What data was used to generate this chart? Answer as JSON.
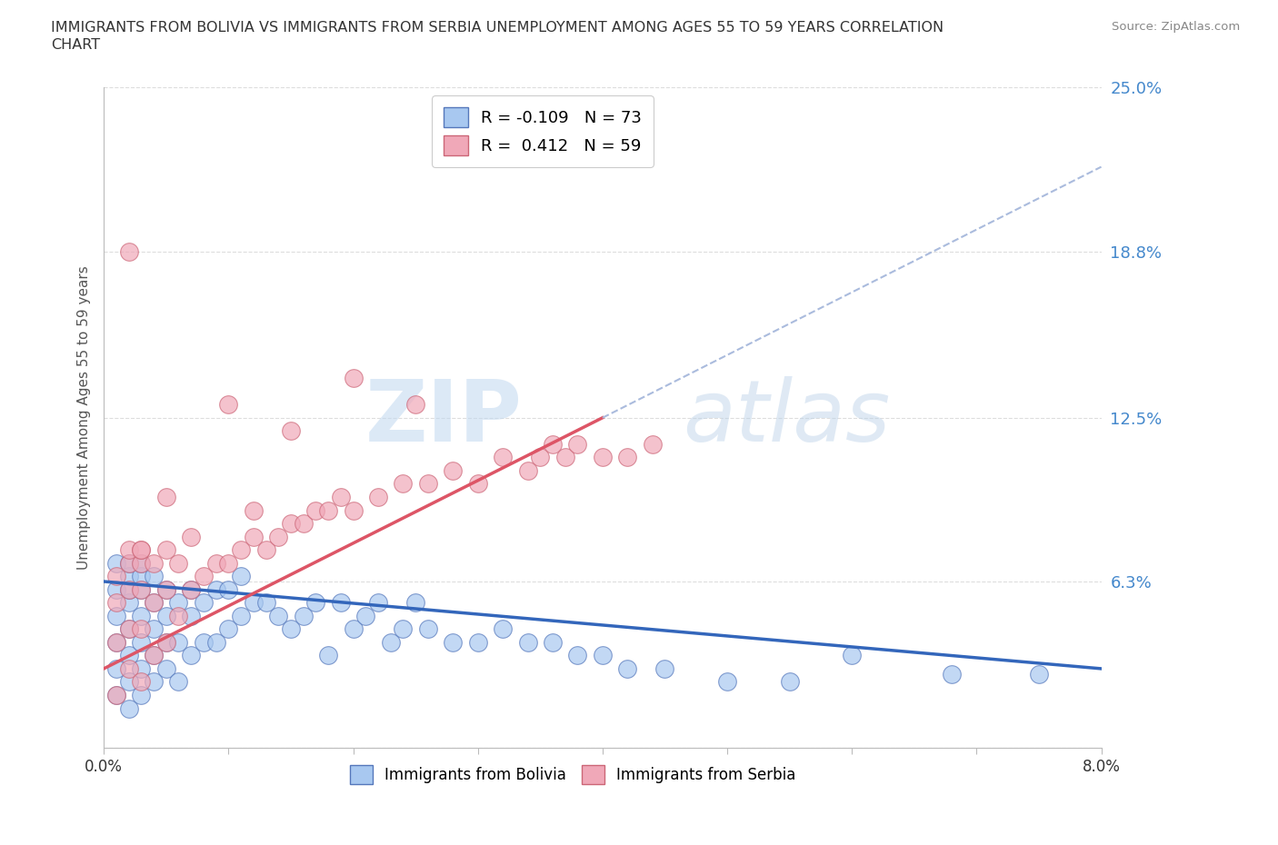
{
  "title_line1": "IMMIGRANTS FROM BOLIVIA VS IMMIGRANTS FROM SERBIA UNEMPLOYMENT AMONG AGES 55 TO 59 YEARS CORRELATION",
  "title_line2": "CHART",
  "source": "Source: ZipAtlas.com",
  "ylabel": "Unemployment Among Ages 55 to 59 years",
  "xlim": [
    0.0,
    0.08
  ],
  "ylim": [
    0.0,
    0.25
  ],
  "xticks": [
    0.0,
    0.01,
    0.02,
    0.03,
    0.04,
    0.05,
    0.06,
    0.07,
    0.08
  ],
  "xticklabels": [
    "0.0%",
    "",
    "",
    "",
    "",
    "",
    "",
    "",
    "8.0%"
  ],
  "ytick_positions": [
    0.0,
    0.063,
    0.125,
    0.188,
    0.25
  ],
  "ytick_labels": [
    "",
    "6.3%",
    "12.5%",
    "18.8%",
    "25.0%"
  ],
  "bolivia_color": "#a8c8f0",
  "serbia_color": "#f0a8b8",
  "bolivia_edge": "#5577bb",
  "serbia_edge": "#cc6677",
  "bolivia_trend_color": "#3366bb",
  "serbia_trend_color": "#dd5566",
  "bolivia_trend_dashed_color": "#aabbdd",
  "R_bolivia": -0.109,
  "N_bolivia": 73,
  "R_serbia": 0.412,
  "N_serbia": 59,
  "watermark_zip": "ZIP",
  "watermark_atlas": "atlas",
  "grid_color": "#dddddd",
  "bolivia_x": [
    0.001,
    0.001,
    0.001,
    0.001,
    0.001,
    0.001,
    0.002,
    0.002,
    0.002,
    0.002,
    0.002,
    0.002,
    0.002,
    0.002,
    0.003,
    0.003,
    0.003,
    0.003,
    0.003,
    0.003,
    0.003,
    0.004,
    0.004,
    0.004,
    0.004,
    0.004,
    0.005,
    0.005,
    0.005,
    0.005,
    0.006,
    0.006,
    0.006,
    0.007,
    0.007,
    0.007,
    0.008,
    0.008,
    0.009,
    0.009,
    0.01,
    0.01,
    0.011,
    0.011,
    0.012,
    0.013,
    0.014,
    0.015,
    0.016,
    0.017,
    0.018,
    0.019,
    0.02,
    0.021,
    0.022,
    0.023,
    0.024,
    0.025,
    0.026,
    0.028,
    0.03,
    0.032,
    0.034,
    0.036,
    0.038,
    0.04,
    0.042,
    0.045,
    0.05,
    0.055,
    0.06,
    0.068,
    0.075
  ],
  "bolivia_y": [
    0.02,
    0.03,
    0.04,
    0.05,
    0.06,
    0.07,
    0.015,
    0.025,
    0.035,
    0.045,
    0.055,
    0.06,
    0.065,
    0.07,
    0.02,
    0.03,
    0.04,
    0.05,
    0.06,
    0.065,
    0.07,
    0.025,
    0.035,
    0.045,
    0.055,
    0.065,
    0.03,
    0.04,
    0.05,
    0.06,
    0.025,
    0.04,
    0.055,
    0.035,
    0.05,
    0.06,
    0.04,
    0.055,
    0.04,
    0.06,
    0.045,
    0.06,
    0.05,
    0.065,
    0.055,
    0.055,
    0.05,
    0.045,
    0.05,
    0.055,
    0.035,
    0.055,
    0.045,
    0.05,
    0.055,
    0.04,
    0.045,
    0.055,
    0.045,
    0.04,
    0.04,
    0.045,
    0.04,
    0.04,
    0.035,
    0.035,
    0.03,
    0.03,
    0.025,
    0.025,
    0.035,
    0.028,
    0.028
  ],
  "serbia_x": [
    0.001,
    0.001,
    0.001,
    0.001,
    0.002,
    0.002,
    0.002,
    0.002,
    0.002,
    0.003,
    0.003,
    0.003,
    0.003,
    0.003,
    0.004,
    0.004,
    0.004,
    0.005,
    0.005,
    0.005,
    0.006,
    0.006,
    0.007,
    0.008,
    0.009,
    0.01,
    0.011,
    0.012,
    0.013,
    0.014,
    0.015,
    0.016,
    0.017,
    0.018,
    0.019,
    0.02,
    0.022,
    0.024,
    0.026,
    0.028,
    0.03,
    0.032,
    0.034,
    0.035,
    0.036,
    0.037,
    0.038,
    0.04,
    0.042,
    0.044,
    0.002,
    0.005,
    0.01,
    0.015,
    0.02,
    0.025,
    0.003,
    0.007,
    0.012
  ],
  "serbia_y": [
    0.02,
    0.04,
    0.055,
    0.065,
    0.03,
    0.045,
    0.06,
    0.07,
    0.075,
    0.025,
    0.045,
    0.06,
    0.07,
    0.075,
    0.035,
    0.055,
    0.07,
    0.04,
    0.06,
    0.075,
    0.05,
    0.07,
    0.06,
    0.065,
    0.07,
    0.07,
    0.075,
    0.08,
    0.075,
    0.08,
    0.085,
    0.085,
    0.09,
    0.09,
    0.095,
    0.09,
    0.095,
    0.1,
    0.1,
    0.105,
    0.1,
    0.11,
    0.105,
    0.11,
    0.115,
    0.11,
    0.115,
    0.11,
    0.11,
    0.115,
    0.188,
    0.095,
    0.13,
    0.12,
    0.14,
    0.13,
    0.075,
    0.08,
    0.09
  ]
}
